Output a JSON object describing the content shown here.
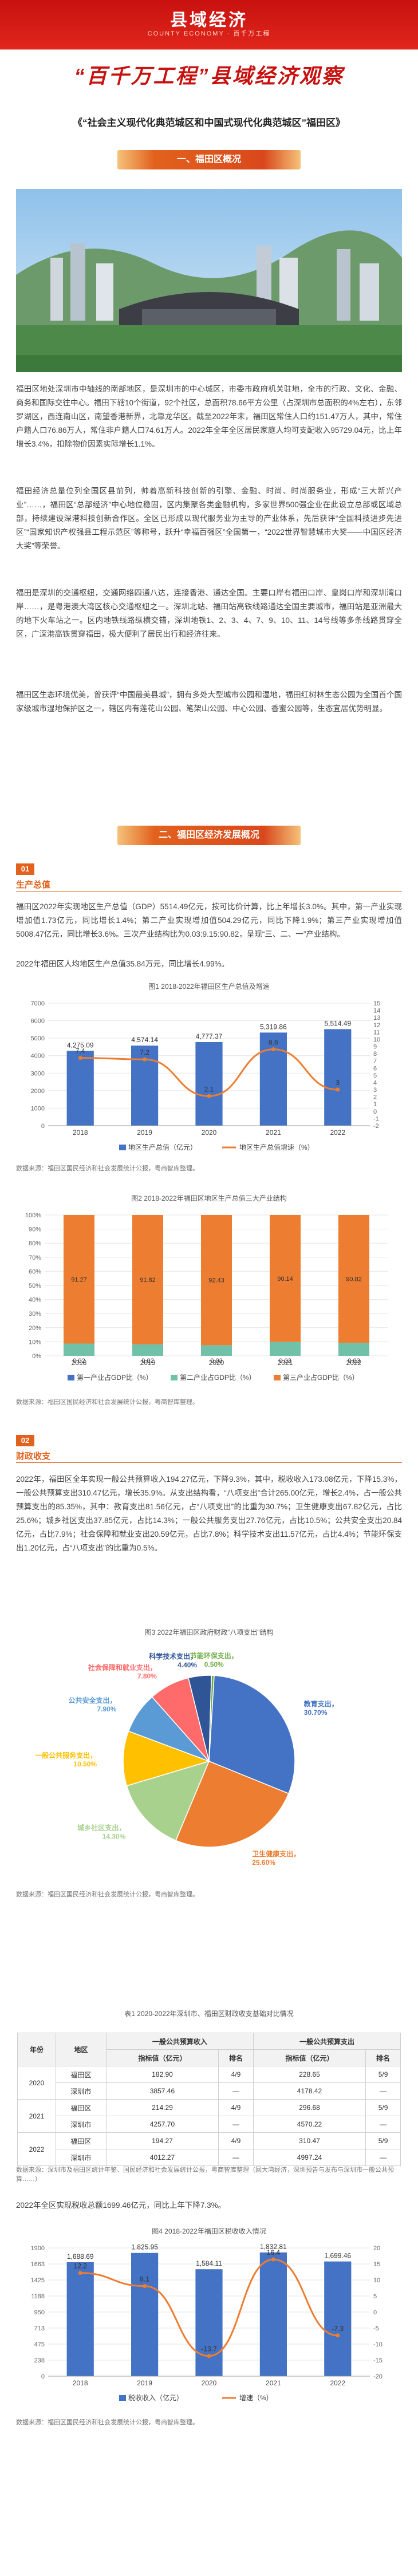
{
  "banner": {
    "brand": "县域经济",
    "brand_sub": "COUNTY ECONOMY · 百千万工程",
    "slogan": "“百千万工程”县域经济观察"
  },
  "doc_title": "《“社会主义现代化典范城区和中国式现代化典范城区”福田区》",
  "section1": {
    "title": "一、福田区概况"
  },
  "intro_paragraphs": [
    "福田区地处深圳市中轴线的南部地区，是深圳市的中心城区，市委市政府机关驻地，全市的行政、文化、金融、商务和国际交往中心。福田下辖10个街道，92个社区，总面积78.66平方公里（占深圳市总面积的4%左右），东邻罗湖区，西连南山区，南望香港新界，北靠龙华区。截至2022年末，福田区常住人口约151.47万人，其中，常住户籍人口76.86万人，常住非户籍人口74.61万人。2022年全年全区居民家庭人均可支配收入95729.04元，比上年增长3.4%，扣除物价因素实际增长1.1%。",
    "福田经济总量位列全国区县前列，帅着高新科技创新的引擎、金融、时尚、时尚服务业，形成“三大新兴产业”……，福田区“总部经济”中心地位稳固，区内集聚各类金融机构，多家世界500强企业在此设立总部或区域总部，持续建设深港科技创新合作区。全区已形成以现代服务业为主导的产业体系，先后获评“全国科技进步先进区”“国家知识产权强县工程示范区”等称号，跃升“幸福百强区”全国第一，“2022世界智慧城市大奖——中国区经济大奖”等荣誉。",
    "福田是深圳的交通枢纽，交通网络四通八达，连接香港、通达全国。主要口岸有福田口岸、皇岗口岸和深圳湾口岸……，是粤港澳大湾区核心交通枢纽之一。深圳北站、福田站高铁线路通达全国主要城市，福田站是亚洲最大的地下火车站之一。区内地铁线路纵横交错，深圳地铁1、2、3、4、7、9、10、11、14号线等多条线路贯穿全区，广深港高铁贯穿福田，极大便利了居民出行和经济往来。",
    "福田区生态环境优美，曾获评“中国最美县城”，拥有多处大型城市公园和湿地，福田红树林生态公园为全国首个国家级城市湿地保护区之一，辖区内有莲花山公园、笔架山公园、中心公园、香蜜公园等，生态宜居优势明显。"
  ],
  "section2": {
    "title": "二、福田区经济发展概况"
  },
  "sub1": {
    "badge": "01",
    "title": "生产总值",
    "paragraph": "福田区2022年实现地区生产总值（GDP）5514.49亿元，按可比价计算，比上年增长3.0%。其中，第一产业实现增加值1.73亿元，同比增长1.4%；第二产业实现增加值504.29亿元，同比下降1.9%；第三产业实现增加值5008.47亿元，同比增长3.6%。三次产业结构比为0.03:9.15:90.82，呈现“三、二、一”产业结构。",
    "paragraph2": "2022年福田区人均地区生产总值35.84万元，同比增长4.99%。",
    "chart_caption": "图1 2018-2022年福田区生产总值及增速",
    "chart2_caption": "图2 2018-2022年福田区地区生产总值三大产业结构",
    "source": "数据来源：福田区国民经济和社会发展统计公报，粤商智库整理。"
  },
  "sub2": {
    "badge": "02",
    "title": "财政收支",
    "paragraph": "2022年，福田区全年实现一般公共预算收入194.27亿元，下降9.3%，其中，税收收入173.08亿元，下降15.3%，一般公共预算支出310.47亿元，增长35.9%。从支出结构看，“八项支出”合计265.00亿元，增长2.4%，占一般公共预算支出的85.35%，其中：教育支出81.56亿元，占“八项支出”的比重为30.7%；卫生健康支出67.82亿元，占比25.6%；城乡社区支出37.85亿元，占比14.3%；一般公共服务支出27.76亿元，占比10.5%；公共安全支出20.84亿元，占比7.9%；社会保障和就业支出20.59亿元，占比7.8%；科学技术支出11.57亿元，占比4.4%；节能环保支出1.20亿元，占“八项支出”的比重为0.5%。",
    "pie_caption": "图3 2022年福田区政府财政“八项支出”结构",
    "pie_source": "数据来源：福田区国民经济和社会发展统计公报，粤商智库整理。",
    "table_caption": "表1 2020-2022年深圳市、福田区财政收支基础对比情况",
    "table_source": "数据来源：深圳市及福田区统计年鉴、国民经济和社会发展统计公报，粤商智库整理（回大湾经济，深圳预告与发布与深圳市一般公共预算……）",
    "paragraph2": "2022年全区实现税收总额1699.46亿元，同比上年下降7.3%。",
    "chart4_caption": "图4 2018-2022年福田区税收收入情况"
  },
  "table": {
    "headers": [
      "",
      "",
      "一般公共预算收入",
      "",
      "一般公共预算支出",
      ""
    ],
    "subheaders": [
      "年份",
      "地区",
      "指标值（亿元）",
      "排名",
      "指标值（亿元）",
      "排名"
    ],
    "rows": [
      [
        "2020",
        "福田区",
        "182.90",
        "4/9",
        "228.65",
        "5/9"
      ],
      [
        "",
        "深圳市",
        "3857.46",
        "—",
        "4178.42",
        "—"
      ],
      [
        "2021",
        "福田区",
        "214.29",
        "4/9",
        "296.68",
        "5/9"
      ],
      [
        "",
        "深圳市",
        "4257.70",
        "—",
        "4570.22",
        "—"
      ],
      [
        "2022",
        "福田区",
        "194.27",
        "4/9",
        "310.47",
        "5/9"
      ],
      [
        "",
        "深圳市",
        "4012.27",
        "—",
        "4997.24",
        "—"
      ]
    ]
  },
  "chart_data": [
    {
      "type": "bar",
      "categories": [
        "2018",
        "2019",
        "2020",
        "2021",
        "2022"
      ],
      "series": [
        {
          "name": "地区生产总值（亿元）",
          "values": [
            4275.09,
            4574.14,
            4777.37,
            5319.86,
            5514.49
          ],
          "color": "#4472c4"
        },
        {
          "name": "地区生产总值增速（%）",
          "values": [
            7.4,
            7.2,
            2.1,
            8.6,
            3.0
          ],
          "color": "#ed7d31",
          "axis": "right"
        }
      ],
      "ylim": [
        0,
        7000
      ],
      "y2lim": [
        -2,
        15
      ],
      "legend": "bottom"
    },
    {
      "type": "bar",
      "stacked": true,
      "categories": [
        "2018",
        "2019",
        "2020",
        "2021",
        "2022"
      ],
      "series": [
        {
          "name": "第一产业占GDP比（%）",
          "values": [
            0.02,
            0.02,
            0.03,
            0.03,
            0.03
          ],
          "color": "#4472c4"
        },
        {
          "name": "第二产业占GDP比（%）",
          "values": [
            8.71,
            8.16,
            7.54,
            9.83,
            9.15
          ],
          "color": "#70c1a8"
        },
        {
          "name": "第三产业占GDP比（%）",
          "values": [
            91.27,
            91.82,
            92.43,
            90.14,
            90.82
          ],
          "color": "#ed7d31"
        }
      ],
      "ylim": [
        0,
        100
      ],
      "legend": "bottom"
    },
    {
      "type": "pie",
      "labels": [
        "教育支出",
        "卫生健康支出",
        "城乡社区支出",
        "一般公共服务支出",
        "公共安全支出",
        "社会保障和就业支出",
        "科学技术支出",
        "节能环保支出"
      ],
      "values": [
        30.7,
        25.6,
        14.3,
        10.5,
        7.9,
        7.8,
        4.4,
        0.5
      ],
      "colors": [
        "#4472c4",
        "#ed7d31",
        "#a9d18e",
        "#ffc000",
        "#5b9bd5",
        "#ff6b6b",
        "#2f5597",
        "#70ad47"
      ]
    },
    {
      "type": "bar",
      "categories": [
        "2018",
        "2019",
        "2020",
        "2021",
        "2022"
      ],
      "series": [
        {
          "name": "税收收入（亿元）",
          "values": [
            1688.69,
            1825.95,
            1584.11,
            1832.81,
            1699.46
          ],
          "color": "#4472c4"
        },
        {
          "name": "增速（%）",
          "values": [
            12.2,
            8.1,
            -13.7,
            16.4,
            -7.3
          ],
          "color": "#ed7d31",
          "axis": "right"
        }
      ],
      "ylim": [
        0,
        1900
      ],
      "y2lim": [
        -20,
        20
      ],
      "legend": "bottom"
    }
  ]
}
